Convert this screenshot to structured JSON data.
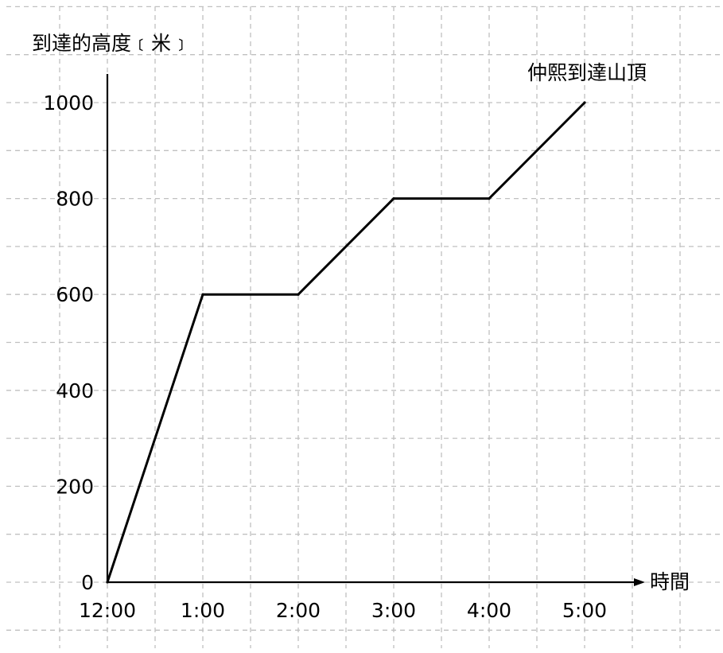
{
  "chart_data": {
    "type": "line",
    "ylabel": "到達的高度﹝米﹞",
    "xlabel": "時間",
    "categories": [
      "12:00",
      "1:00",
      "2:00",
      "3:00",
      "4:00",
      "5:00"
    ],
    "x_hours": [
      0,
      1,
      2,
      3,
      4,
      5
    ],
    "y_ticks": [
      0,
      200,
      400,
      600,
      800,
      1000
    ],
    "ylim": [
      0,
      1000
    ],
    "series": [
      {
        "values": [
          0,
          600,
          600,
          800,
          800,
          1000
        ]
      }
    ],
    "annotation": {
      "text": "仲熙到達山頂",
      "at_index": 5
    },
    "grid": true,
    "colors": {
      "line": "#000000",
      "grid": "#c0c0c0"
    }
  }
}
